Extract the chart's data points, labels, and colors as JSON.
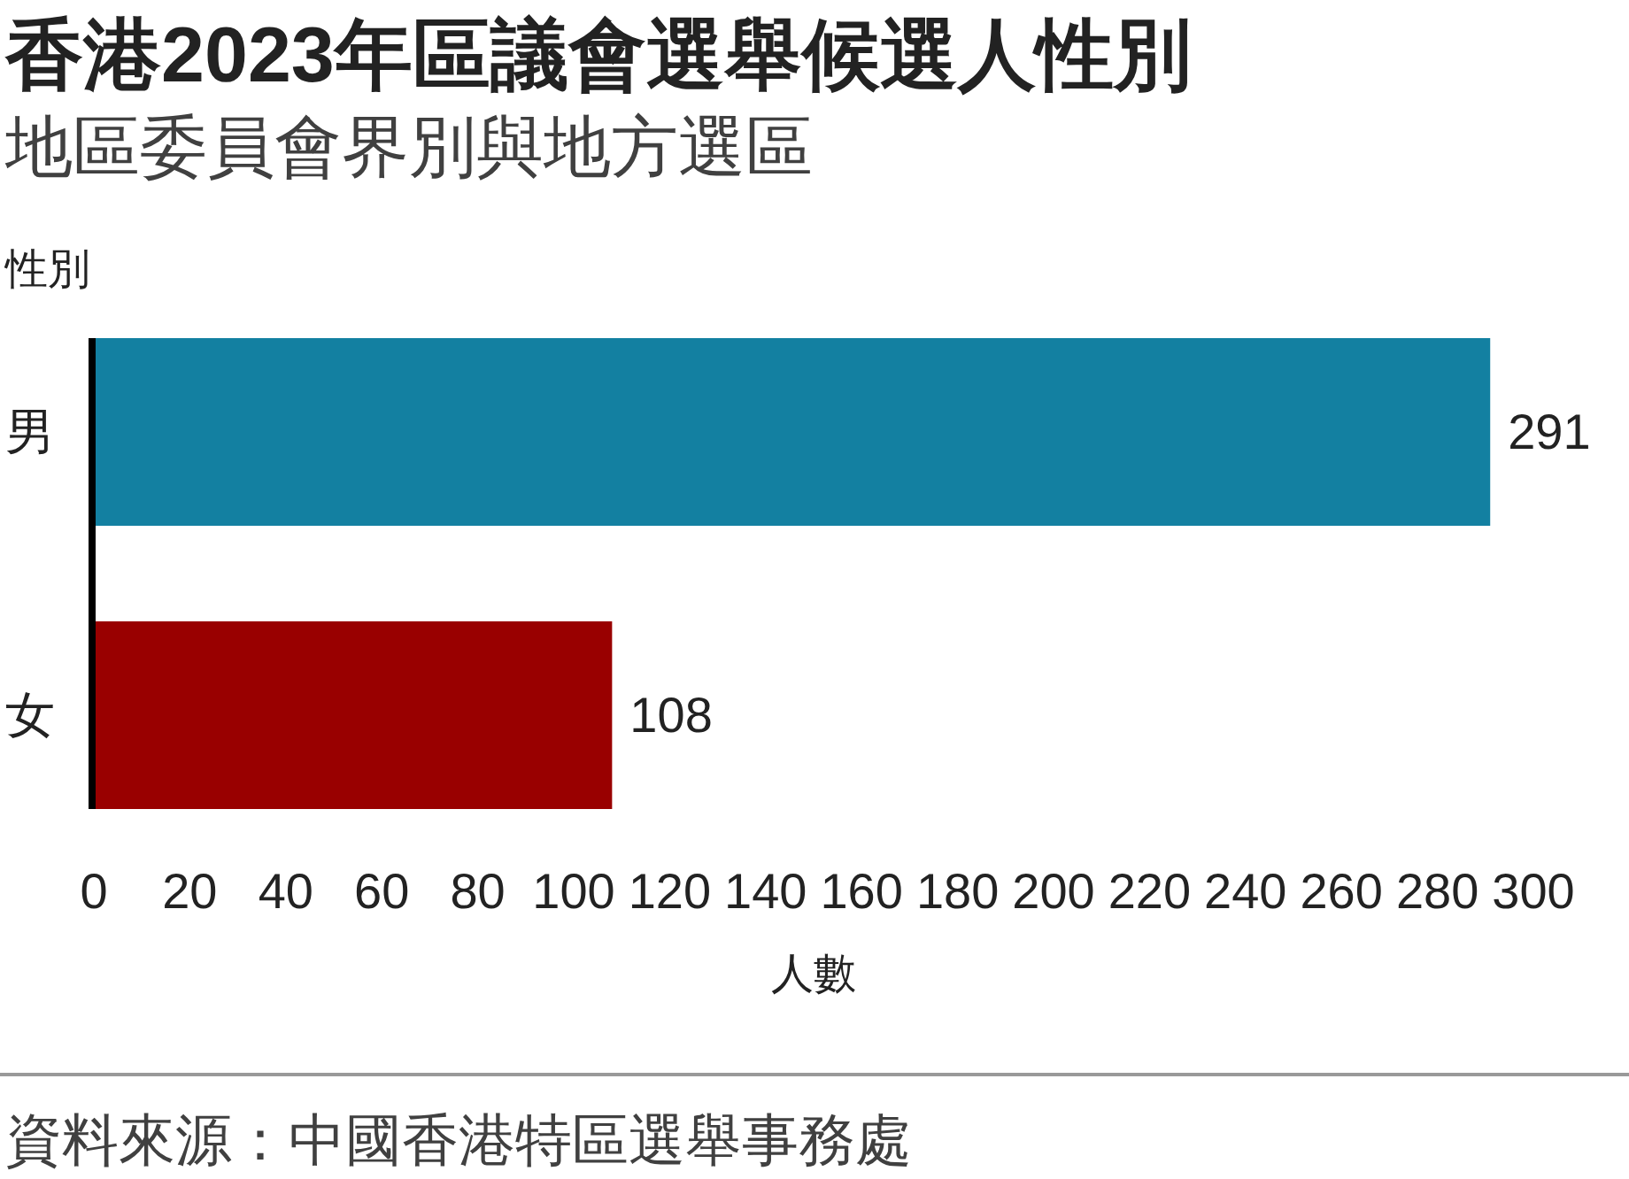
{
  "chart_data": {
    "type": "bar",
    "orientation": "horizontal",
    "title": "香港2023年區議會選舉候選人性別",
    "subtitle": "地區委員會界別與地方選區",
    "ylabel": "性別",
    "xlabel": "人數",
    "categories": [
      "男",
      "女"
    ],
    "values": [
      291,
      108
    ],
    "colors": [
      "#1380a1",
      "#990000"
    ],
    "xlim": [
      0,
      300
    ],
    "xticks": [
      0,
      20,
      40,
      60,
      80,
      100,
      120,
      140,
      160,
      180,
      200,
      220,
      240,
      260,
      280,
      300
    ],
    "data_labels": true,
    "annotations": [
      "資料來源：中國香港特區選舉事務處"
    ]
  }
}
